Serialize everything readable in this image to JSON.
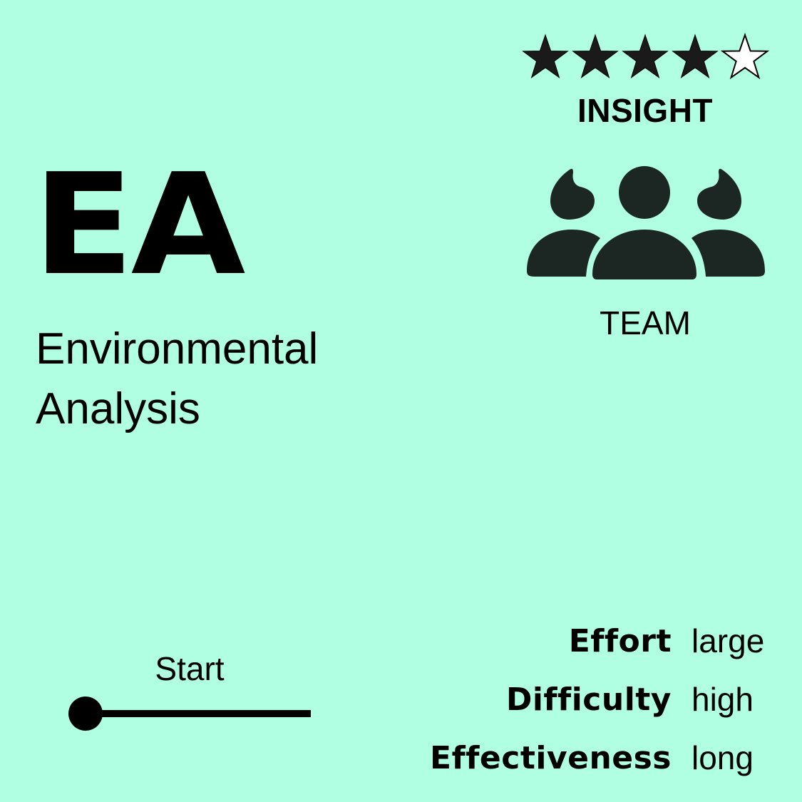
{
  "card": {
    "abbreviation": "EA",
    "title_line1": "Environmental",
    "title_line2": "Analysis",
    "rating": {
      "value": 4,
      "max": 5,
      "filled_color": "#1a1a1a",
      "empty_color": "#ffffff"
    },
    "category": "INSIGHT",
    "team": {
      "icon": "team-icon",
      "label": "TEAM",
      "icon_color": "#1c2622"
    },
    "stage": {
      "label": "Start",
      "progress": 0
    },
    "metrics": [
      {
        "key": "Effort",
        "value": "large"
      },
      {
        "key": "Difficulty",
        "value": "high"
      },
      {
        "key": "Effectiveness",
        "value": "long"
      }
    ],
    "background_color": "#b0ffe2"
  }
}
